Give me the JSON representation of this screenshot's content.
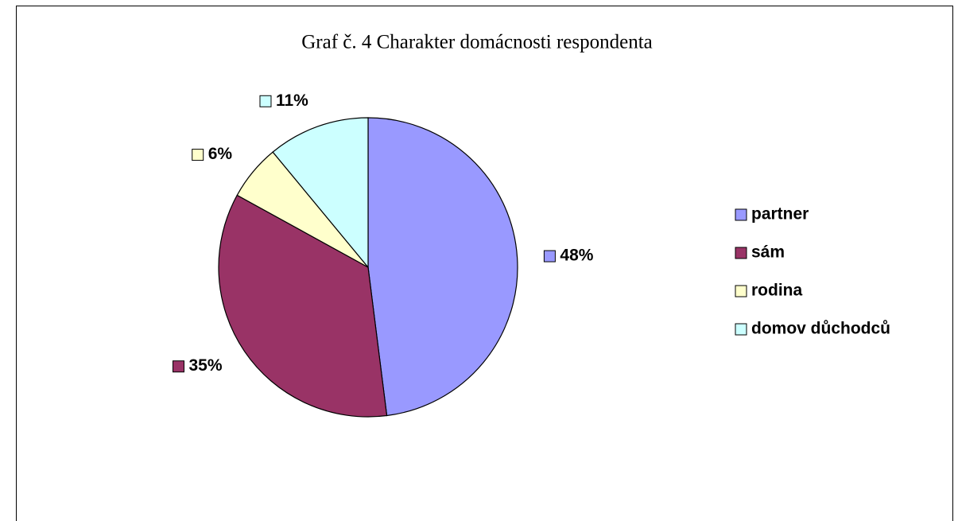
{
  "chart_data": {
    "type": "pie",
    "title": "Graf č. 4 Charakter domácnosti respondenta",
    "categories": [
      "partner",
      "sám",
      "rodina",
      "domov důchodců"
    ],
    "values": [
      48,
      35,
      6,
      11
    ],
    "value_labels": [
      "48%",
      "35%",
      "6%",
      "11%"
    ],
    "colors": [
      "#9999FF",
      "#993366",
      "#FFFFCC",
      "#CCFFFF"
    ],
    "legend": "right"
  }
}
